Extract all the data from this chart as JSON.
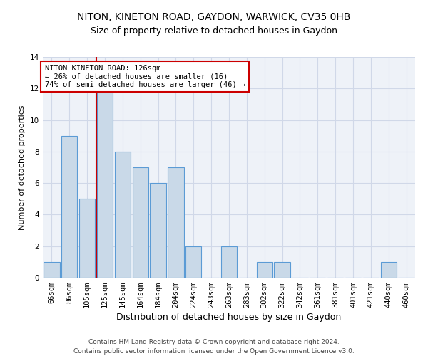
{
  "title1": "NITON, KINETON ROAD, GAYDON, WARWICK, CV35 0HB",
  "title2": "Size of property relative to detached houses in Gaydon",
  "xlabel": "Distribution of detached houses by size in Gaydon",
  "ylabel": "Number of detached properties",
  "footer1": "Contains HM Land Registry data © Crown copyright and database right 2024.",
  "footer2": "Contains public sector information licensed under the Open Government Licence v3.0.",
  "categories": [
    "66sqm",
    "86sqm",
    "105sqm",
    "125sqm",
    "145sqm",
    "164sqm",
    "184sqm",
    "204sqm",
    "224sqm",
    "243sqm",
    "263sqm",
    "283sqm",
    "302sqm",
    "322sqm",
    "342sqm",
    "361sqm",
    "381sqm",
    "401sqm",
    "421sqm",
    "440sqm",
    "460sqm"
  ],
  "values": [
    1,
    9,
    5,
    12,
    8,
    7,
    6,
    7,
    2,
    0,
    2,
    0,
    1,
    1,
    0,
    0,
    0,
    0,
    0,
    1,
    0
  ],
  "bar_color": "#c9d9e8",
  "bar_edge_color": "#5b9bd5",
  "bar_linewidth": 0.8,
  "highlight_index": 3,
  "highlight_line_color": "#cc0000",
  "annotation_text": "NITON KINETON ROAD: 126sqm\n← 26% of detached houses are smaller (16)\n74% of semi-detached houses are larger (46) →",
  "annotation_box_color": "#ffffff",
  "annotation_box_edge": "#cc0000",
  "ylim": [
    0,
    14
  ],
  "yticks": [
    0,
    2,
    4,
    6,
    8,
    10,
    12,
    14
  ],
  "grid_color": "#d0d8e8",
  "bg_color": "#eef2f8",
  "title1_fontsize": 10,
  "title2_fontsize": 9,
  "xlabel_fontsize": 9,
  "ylabel_fontsize": 8,
  "tick_fontsize": 7.5,
  "annotation_fontsize": 7.5,
  "footer_fontsize": 6.5
}
